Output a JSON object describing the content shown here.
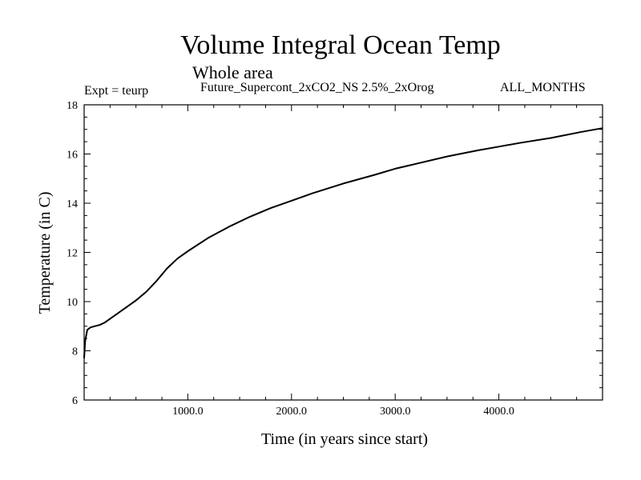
{
  "header": {
    "title": "Volume Integral Ocean Temp",
    "subtitle": "Whole area",
    "experiment": "Expt = teurp",
    "run_name": "Future_Supercont_2xCO2_NS 2.5%_2xOrog",
    "months": "ALL_MONTHS"
  },
  "chart_data": {
    "type": "line",
    "xlabel": "Time (in years since start)",
    "ylabel": "Temperature (in C)",
    "xlim": [
      0,
      5000
    ],
    "ylim": [
      6,
      18
    ],
    "x_ticks": [
      1000,
      2000,
      3000,
      4000
    ],
    "x_tick_labels": [
      "1000.0",
      "2000.0",
      "3000.0",
      "4000.0"
    ],
    "y_ticks": [
      6,
      8,
      10,
      12,
      14,
      16,
      18
    ],
    "y_tick_labels": [
      "6",
      "8",
      "10",
      "12",
      "14",
      "16",
      "18"
    ],
    "grid": false,
    "series": [
      {
        "x": [
          0,
          10,
          30,
          60,
          100,
          150,
          200,
          300,
          400,
          500,
          600,
          700,
          800,
          900,
          1000,
          1200,
          1400,
          1600,
          1800,
          2000,
          2200,
          2500,
          2800,
          3000,
          3200,
          3500,
          3800,
          4000,
          4200,
          4500,
          4800,
          5000
        ],
        "y": [
          7.7,
          8.4,
          8.85,
          8.95,
          9.0,
          9.05,
          9.15,
          9.45,
          9.75,
          10.05,
          10.4,
          10.85,
          11.35,
          11.75,
          12.05,
          12.6,
          13.05,
          13.45,
          13.8,
          14.1,
          14.4,
          14.8,
          15.15,
          15.4,
          15.6,
          15.9,
          16.15,
          16.3,
          16.45,
          16.65,
          16.9,
          17.05
        ]
      }
    ]
  }
}
